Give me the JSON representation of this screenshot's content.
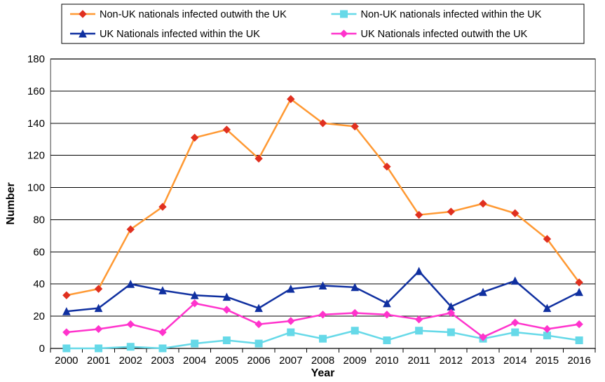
{
  "chart": {
    "type": "line",
    "background_color": "#ffffff",
    "grid_color": "#000000",
    "plot_border_color": "#808080",
    "xlabel": "Year",
    "ylabel": "Number",
    "label_fontsize": 16,
    "tick_fontsize": 15,
    "categories": [
      "2000",
      "2001",
      "2002",
      "2003",
      "2004",
      "2005",
      "2006",
      "2007",
      "2008",
      "2009",
      "2010",
      "2011",
      "2012",
      "2013",
      "2014",
      "2015",
      "2016"
    ],
    "ylim": [
      0,
      180
    ],
    "ytick_step": 20,
    "line_width": 2.5,
    "marker_size": 5,
    "series": [
      {
        "key": "nonuk_out",
        "label": "Non-UK nationals infected outwith the UK",
        "color": "#ff9933",
        "marker_color": "#e03020",
        "marker": "diamond",
        "values": [
          33,
          37,
          74,
          88,
          131,
          136,
          118,
          155,
          140,
          138,
          113,
          83,
          85,
          90,
          84,
          68,
          41
        ]
      },
      {
        "key": "nonuk_in",
        "label": "Non-UK nationals infected within the UK",
        "color": "#66d9e8",
        "marker_color": "#66d9e8",
        "marker": "square",
        "values": [
          0,
          0,
          1,
          0,
          3,
          5,
          3,
          10,
          6,
          11,
          5,
          11,
          10,
          6,
          10,
          8,
          5
        ]
      },
      {
        "key": "uk_in",
        "label": "UK Nationals infected within the UK",
        "color": "#1030a0",
        "marker_color": "#1030a0",
        "marker": "triangle",
        "values": [
          23,
          25,
          40,
          36,
          33,
          32,
          25,
          37,
          39,
          38,
          28,
          48,
          26,
          35,
          42,
          25,
          35
        ]
      },
      {
        "key": "uk_out",
        "label": "UK Nationals infected outwith the UK",
        "color": "#ff33cc",
        "marker_color": "#ff33cc",
        "marker": "diamond",
        "values": [
          10,
          12,
          15,
          10,
          28,
          24,
          15,
          17,
          21,
          22,
          21,
          18,
          22,
          7,
          16,
          12,
          15
        ]
      }
    ],
    "legend": {
      "columns": 2,
      "rows": 2,
      "order": [
        "nonuk_out",
        "nonuk_in",
        "uk_in",
        "uk_out"
      ],
      "fontsize": 14.5
    }
  }
}
